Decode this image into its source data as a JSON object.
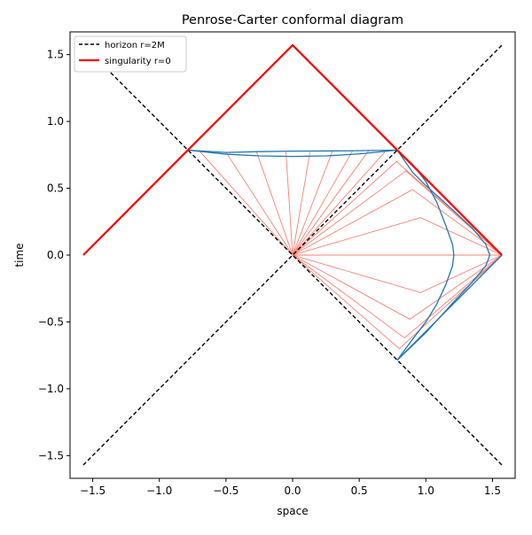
{
  "chart_data": {
    "type": "line",
    "title": "Penrose-Carter conformal diagram",
    "xlabel": "space",
    "ylabel": "time",
    "xlim": [
      -1.67,
      1.67
    ],
    "ylim": [
      -1.67,
      1.67
    ],
    "xticks": [
      -1.5,
      -1.0,
      -0.5,
      0.0,
      0.5,
      1.0,
      1.5
    ],
    "xtick_labels": [
      "−1.5",
      "−1.0",
      "−0.5",
      "0.0",
      "0.5",
      "1.0",
      "1.5"
    ],
    "yticks": [
      -1.5,
      -1.0,
      -0.5,
      0.0,
      0.5,
      1.0,
      1.5
    ],
    "ytick_labels": [
      "−1.5",
      "−1.0",
      "−0.5",
      "0.0",
      "0.5",
      "1.0",
      "1.5"
    ],
    "grid": false,
    "legend_position": "top-left",
    "legend": [
      {
        "label": "horizon r=2M",
        "color": "#000000",
        "style": "dashed"
      },
      {
        "label": "singularity r=0",
        "color": "#ff0000",
        "style": "solid"
      }
    ],
    "series": [
      {
        "name": "horizon r=2M",
        "color": "#000000",
        "style": "dashed",
        "points": [
          [
            -1.5708,
            -1.5708
          ],
          [
            1.5708,
            1.5708
          ]
        ]
      },
      {
        "name": "horizon r=2M",
        "color": "#000000",
        "style": "dashed",
        "points": [
          [
            -1.5708,
            1.5708
          ],
          [
            1.5708,
            -1.5708
          ]
        ]
      },
      {
        "name": "singularity r=0",
        "color": "#ff0000",
        "style": "solid",
        "points": [
          [
            -1.5708,
            0.0
          ],
          [
            -0.7854,
            0.7854
          ],
          [
            0.0,
            1.5708
          ],
          [
            0.7854,
            0.7854
          ],
          [
            1.5708,
            0.0
          ]
        ]
      },
      {
        "color": "#1f77b4",
        "style": "solid",
        "points": [
          [
            -0.7854,
            0.7854
          ],
          [
            -0.5,
            0.755
          ],
          [
            -0.25,
            0.742
          ],
          [
            0.0,
            0.738
          ],
          [
            0.25,
            0.742
          ],
          [
            0.5,
            0.757
          ],
          [
            0.7854,
            0.7854
          ]
        ]
      },
      {
        "color": "#1f77b4",
        "style": "solid",
        "points": [
          [
            -0.7854,
            0.7854
          ],
          [
            -0.5,
            0.768
          ],
          [
            -0.25,
            0.774
          ],
          [
            0.0,
            0.778
          ],
          [
            0.25,
            0.779
          ],
          [
            0.5,
            0.781
          ],
          [
            0.7854,
            0.7854
          ]
        ]
      },
      {
        "color": "#1f77b4",
        "style": "solid",
        "points": [
          [
            0.7854,
            0.7854
          ],
          [
            0.9,
            0.68
          ],
          [
            1.0,
            0.55
          ],
          [
            1.08,
            0.4
          ],
          [
            1.15,
            0.22
          ],
          [
            1.2,
            0.08
          ],
          [
            1.21,
            0.0
          ],
          [
            1.2,
            -0.08
          ],
          [
            1.15,
            -0.22
          ],
          [
            1.08,
            -0.37
          ],
          [
            1.0,
            -0.5
          ],
          [
            0.9,
            -0.63
          ],
          [
            0.7854,
            -0.7854
          ]
        ]
      },
      {
        "color": "#1f77b4",
        "style": "solid",
        "points": [
          [
            0.7854,
            -0.7854
          ],
          [
            1.0,
            -0.58
          ],
          [
            1.2,
            -0.36
          ],
          [
            1.35,
            -0.2
          ],
          [
            1.45,
            -0.08
          ],
          [
            1.48,
            0.0
          ],
          [
            1.45,
            0.08
          ],
          [
            1.35,
            0.2
          ],
          [
            1.2,
            0.34
          ],
          [
            1.0,
            0.52
          ],
          [
            0.9,
            0.62
          ],
          [
            0.7854,
            0.7854
          ]
        ]
      },
      {
        "color": "#1f77b4",
        "style": "solid",
        "points": [
          [
            0.7854,
            -0.7854
          ],
          [
            1.5708,
            0.0
          ]
        ]
      },
      {
        "color": "#fa8072",
        "style": "solid",
        "points": [
          [
            0.0,
            0.0
          ],
          [
            -0.7,
            0.78
          ]
        ]
      },
      {
        "color": "#fa8072",
        "style": "solid",
        "points": [
          [
            0.0,
            0.0
          ],
          [
            -0.5,
            0.77
          ]
        ]
      },
      {
        "color": "#fa8072",
        "style": "solid",
        "points": [
          [
            0.0,
            0.0
          ],
          [
            -0.27,
            0.77
          ]
        ]
      },
      {
        "color": "#fa8072",
        "style": "solid",
        "points": [
          [
            0.0,
            0.0
          ],
          [
            -0.05,
            0.77
          ]
        ]
      },
      {
        "color": "#fa8072",
        "style": "solid",
        "points": [
          [
            0.0,
            0.0
          ],
          [
            0.13,
            0.77
          ]
        ]
      },
      {
        "color": "#fa8072",
        "style": "solid",
        "points": [
          [
            0.0,
            0.0
          ],
          [
            0.3,
            0.78
          ]
        ]
      },
      {
        "color": "#fa8072",
        "style": "solid",
        "points": [
          [
            0.0,
            0.0
          ],
          [
            0.45,
            0.78
          ]
        ]
      },
      {
        "color": "#fa8072",
        "style": "solid",
        "points": [
          [
            0.0,
            0.0
          ],
          [
            0.57,
            0.78
          ]
        ]
      },
      {
        "color": "#fa8072",
        "style": "solid",
        "points": [
          [
            0.0,
            0.0
          ],
          [
            0.7,
            0.78
          ]
        ]
      },
      {
        "color": "#fa8072",
        "style": "solid",
        "points": [
          [
            0.0,
            0.0
          ],
          [
            0.78,
            0.7
          ],
          [
            1.5708,
            0.0
          ]
        ]
      },
      {
        "color": "#fa8072",
        "style": "solid",
        "points": [
          [
            0.0,
            0.0
          ],
          [
            0.85,
            0.63
          ],
          [
            1.5708,
            0.0
          ]
        ]
      },
      {
        "color": "#fa8072",
        "style": "solid",
        "points": [
          [
            0.0,
            0.0
          ],
          [
            0.9,
            0.49
          ],
          [
            1.5708,
            0.0
          ]
        ]
      },
      {
        "color": "#fa8072",
        "style": "solid",
        "points": [
          [
            0.0,
            0.0
          ],
          [
            0.96,
            0.28
          ],
          [
            1.5708,
            0.0
          ]
        ]
      },
      {
        "color": "#fa8072",
        "style": "solid",
        "points": [
          [
            0.0,
            0.0
          ],
          [
            1.5708,
            0.0
          ]
        ]
      },
      {
        "color": "#fa8072",
        "style": "solid",
        "points": [
          [
            0.0,
            0.0
          ],
          [
            0.96,
            -0.28
          ],
          [
            1.5708,
            0.0
          ]
        ]
      },
      {
        "color": "#fa8072",
        "style": "solid",
        "points": [
          [
            0.0,
            0.0
          ],
          [
            0.88,
            -0.48
          ],
          [
            1.5708,
            0.0
          ]
        ]
      },
      {
        "color": "#fa8072",
        "style": "solid",
        "points": [
          [
            0.0,
            0.0
          ],
          [
            0.84,
            -0.62
          ],
          [
            1.5708,
            0.0
          ]
        ]
      },
      {
        "color": "#fa8072",
        "style": "solid",
        "points": [
          [
            0.0,
            0.0
          ],
          [
            0.8,
            -0.7
          ],
          [
            1.5708,
            0.0
          ]
        ]
      }
    ]
  }
}
